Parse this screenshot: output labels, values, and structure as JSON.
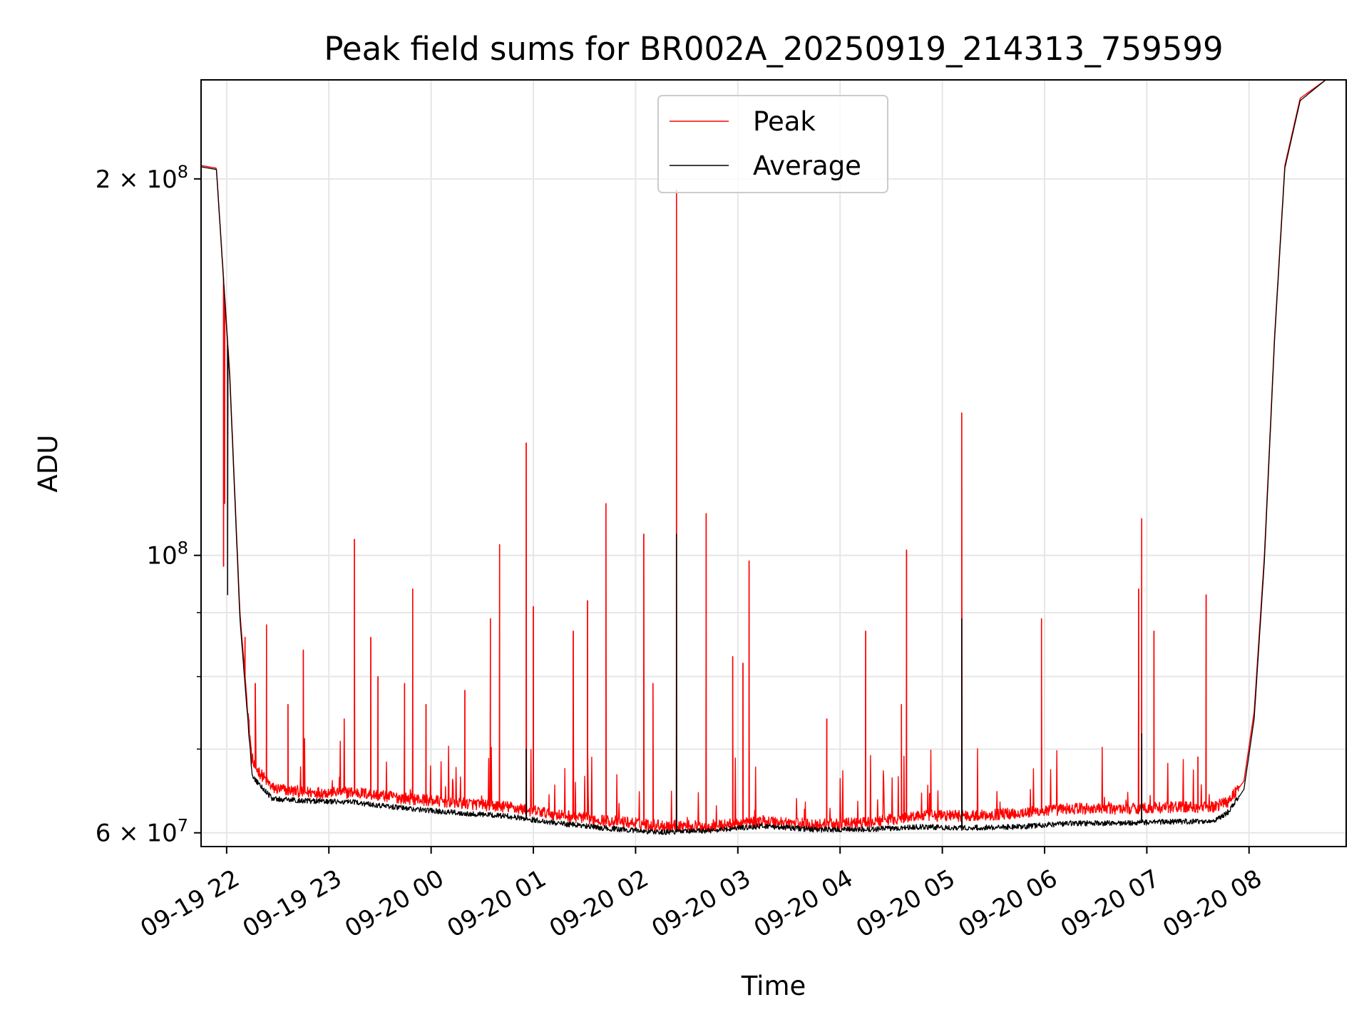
{
  "chart_data": {
    "type": "line",
    "title": "Peak field sums for BR002A_20250919_214313_759599",
    "xlabel": "Time",
    "ylabel": "ADU",
    "y_scale": "log",
    "ylim": [
      58500000,
      240000000
    ],
    "x_unit": "hours since 09-19 21:43",
    "xlim": [
      0,
      11.2
    ],
    "grid": true,
    "legend_position": "top-center",
    "x_ticks": [
      {
        "value": 0.25,
        "label": "09-19 22"
      },
      {
        "value": 1.25,
        "label": "09-19 23"
      },
      {
        "value": 2.25,
        "label": "09-20 00"
      },
      {
        "value": 3.25,
        "label": "09-20 01"
      },
      {
        "value": 4.25,
        "label": "09-20 02"
      },
      {
        "value": 5.25,
        "label": "09-20 03"
      },
      {
        "value": 6.25,
        "label": "09-20 04"
      },
      {
        "value": 7.25,
        "label": "09-20 05"
      },
      {
        "value": 8.25,
        "label": "09-20 06"
      },
      {
        "value": 9.25,
        "label": "09-20 07"
      },
      {
        "value": 10.25,
        "label": "09-20 08"
      }
    ],
    "y_ticks": [
      {
        "value": 200000000,
        "base": "2 × 10",
        "exp": "8"
      },
      {
        "value": 100000000,
        "base": "10",
        "exp": "8"
      },
      {
        "value": 60000000,
        "base": "6 × 10",
        "exp": "7"
      }
    ],
    "y_minor_ticks": [
      70000000,
      80000000,
      90000000
    ],
    "series": [
      {
        "name": "Peak",
        "color": "#ff0000",
        "baseline": [
          [
            0,
            205000000
          ],
          [
            0.15,
            204000000
          ],
          [
            0.28,
            140000000
          ],
          [
            0.38,
            90000000
          ],
          [
            0.5,
            68000000
          ],
          [
            0.7,
            65000000
          ],
          [
            1.0,
            64500000
          ],
          [
            1.5,
            64500000
          ],
          [
            2.0,
            63800000
          ],
          [
            2.5,
            63300000
          ],
          [
            3.0,
            62800000
          ],
          [
            3.5,
            61900000
          ],
          [
            4.0,
            61200000
          ],
          [
            4.5,
            60700000
          ],
          [
            5.0,
            60600000
          ],
          [
            5.5,
            61200000
          ],
          [
            6.0,
            60800000
          ],
          [
            6.5,
            61000000
          ],
          [
            7.0,
            61800000
          ],
          [
            7.5,
            61800000
          ],
          [
            8.0,
            62100000
          ],
          [
            8.5,
            62600000
          ],
          [
            9.0,
            62600000
          ],
          [
            9.5,
            62800000
          ],
          [
            9.9,
            62800000
          ],
          [
            10.05,
            63500000
          ],
          [
            10.2,
            66000000
          ],
          [
            10.3,
            75000000
          ],
          [
            10.4,
            100000000
          ],
          [
            10.5,
            150000000
          ],
          [
            10.6,
            205000000
          ],
          [
            10.75,
            232000000
          ],
          [
            11.0,
            240000000
          ],
          [
            11.2,
            240000000
          ]
        ],
        "spikes": [
          [
            0.22,
            98000000
          ],
          [
            0.23,
            110000000
          ],
          [
            0.26,
            125000000
          ],
          [
            0.43,
            86000000
          ],
          [
            0.53,
            79000000
          ],
          [
            0.64,
            88000000
          ],
          [
            0.85,
            76000000
          ],
          [
            1.0,
            84000000
          ],
          [
            1.4,
            74000000
          ],
          [
            1.5,
            103000000
          ],
          [
            1.66,
            86000000
          ],
          [
            1.73,
            80000000
          ],
          [
            1.99,
            79000000
          ],
          [
            2.07,
            94000000
          ],
          [
            2.2,
            76000000
          ],
          [
            2.58,
            78000000
          ],
          [
            2.83,
            89000000
          ],
          [
            2.92,
            102000000
          ],
          [
            3.18,
            123000000
          ],
          [
            3.25,
            91000000
          ],
          [
            3.64,
            87000000
          ],
          [
            3.78,
            92000000
          ],
          [
            3.96,
            110000000
          ],
          [
            4.33,
            104000000
          ],
          [
            4.42,
            79000000
          ],
          [
            4.65,
            196000000
          ],
          [
            4.94,
            108000000
          ],
          [
            5.2,
            83000000
          ],
          [
            5.3,
            82000000
          ],
          [
            5.36,
            99000000
          ],
          [
            6.12,
            74000000
          ],
          [
            6.5,
            87000000
          ],
          [
            6.85,
            76000000
          ],
          [
            6.9,
            101000000
          ],
          [
            7.44,
            130000000
          ],
          [
            8.22,
            89000000
          ],
          [
            9.17,
            94000000
          ],
          [
            9.2,
            107000000
          ],
          [
            9.32,
            87000000
          ],
          [
            9.75,
            69000000
          ],
          [
            9.83,
            93000000
          ]
        ]
      },
      {
        "name": "Average",
        "color": "#000000",
        "baseline": [
          [
            0,
            204500000
          ],
          [
            0.15,
            203500000
          ],
          [
            0.28,
            139000000
          ],
          [
            0.38,
            89000000
          ],
          [
            0.5,
            66500000
          ],
          [
            0.7,
            63800000
          ],
          [
            1.0,
            63600000
          ],
          [
            1.5,
            63400000
          ],
          [
            2.0,
            62700000
          ],
          [
            2.5,
            62200000
          ],
          [
            3.0,
            61800000
          ],
          [
            3.5,
            61000000
          ],
          [
            4.0,
            60400000
          ],
          [
            4.5,
            60000000
          ],
          [
            5.0,
            60200000
          ],
          [
            5.5,
            60700000
          ],
          [
            6.0,
            60300000
          ],
          [
            6.5,
            60300000
          ],
          [
            7.0,
            60600000
          ],
          [
            7.5,
            60500000
          ],
          [
            8.0,
            60600000
          ],
          [
            8.5,
            61000000
          ],
          [
            9.0,
            61000000
          ],
          [
            9.5,
            61200000
          ],
          [
            9.9,
            61200000
          ],
          [
            10.05,
            62300000
          ],
          [
            10.2,
            65000000
          ],
          [
            10.3,
            74000000
          ],
          [
            10.4,
            99000000
          ],
          [
            10.5,
            149000000
          ],
          [
            10.6,
            204000000
          ],
          [
            10.75,
            231000000
          ],
          [
            11.0,
            240000000
          ],
          [
            11.2,
            240000000
          ]
        ],
        "spikes": [
          [
            0.26,
            93000000
          ],
          [
            3.18,
            70000000
          ],
          [
            4.65,
            104000000
          ],
          [
            7.44,
            89000000
          ],
          [
            9.2,
            72000000
          ]
        ]
      }
    ]
  }
}
